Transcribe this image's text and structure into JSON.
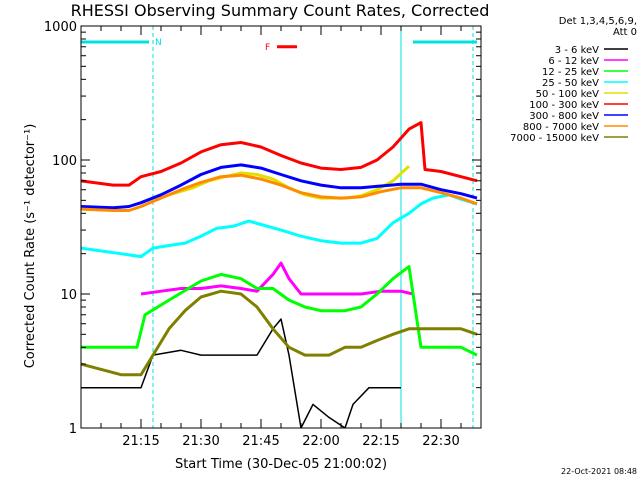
{
  "chart_data": {
    "type": "line",
    "title": "RHESSI Observing Summary Count Rates, Corrected",
    "xlabel": "Start Time (30-Dec-05 21:00:02)",
    "ylabel": "Corrected Count Rate (s⁻¹ detector⁻¹)",
    "y_log": true,
    "ylim": [
      1,
      1000
    ],
    "xlim_minutes": [
      0,
      100
    ],
    "y_ticks": [
      {
        "v": 1,
        "label": "1"
      },
      {
        "v": 10,
        "label": "10"
      },
      {
        "v": 100,
        "label": "100"
      },
      {
        "v": 1000,
        "label": "1000"
      }
    ],
    "x_ticks": [
      {
        "m": 15,
        "label": "21:15"
      },
      {
        "m": 30,
        "label": "21:30"
      },
      {
        "m": 45,
        "label": "21:45"
      },
      {
        "m": 60,
        "label": "22:00"
      },
      {
        "m": 75,
        "label": "22:15"
      },
      {
        "m": 90,
        "label": "22:30"
      }
    ],
    "legend_header": [
      "Det 1,3,4,5,6,9,",
      "Att 0"
    ],
    "legend_position": "right",
    "markers": {
      "night_label": "N",
      "flare_label": "F",
      "night_color": "#00e0e0",
      "flare_color": "#ff0000",
      "night_bars": [
        [
          0,
          18
        ],
        [
          83,
          100
        ]
      ],
      "night_vlines": [
        0,
        18,
        80,
        98
      ],
      "flare_bar_minutes": [
        49,
        54
      ],
      "flare_bar_level": 700
    },
    "annotation_date": "22-Oct-2021 08:48",
    "series": [
      {
        "name": "3 - 6 keV",
        "color": "#000000",
        "values": [
          [
            0,
            2.0
          ],
          [
            15,
            2.0
          ],
          [
            18,
            3.5
          ],
          [
            25,
            3.8
          ],
          [
            30,
            3.5
          ],
          [
            36,
            3.5
          ],
          [
            44,
            3.5
          ],
          [
            48,
            5.5
          ],
          [
            50,
            6.5
          ],
          [
            52,
            3.5
          ],
          [
            55,
            1.0
          ],
          [
            58,
            1.5
          ],
          [
            62,
            1.2
          ],
          [
            66,
            1.0
          ],
          [
            68,
            1.5
          ],
          [
            72,
            2.0
          ],
          [
            76,
            2.0
          ],
          [
            80,
            2.0
          ]
        ]
      },
      {
        "name": "6 - 12 keV",
        "color": "#ff00ff",
        "values": [
          [
            15,
            10.0
          ],
          [
            20,
            10.5
          ],
          [
            25,
            11.0
          ],
          [
            30,
            11.0
          ],
          [
            35,
            11.5
          ],
          [
            40,
            11.0
          ],
          [
            44,
            10.5
          ],
          [
            48,
            14.0
          ],
          [
            50,
            17.0
          ],
          [
            52,
            13.0
          ],
          [
            55,
            10.0
          ],
          [
            60,
            10.0
          ],
          [
            65,
            10.0
          ],
          [
            70,
            10.0
          ],
          [
            75,
            10.5
          ],
          [
            80,
            10.5
          ],
          [
            83,
            10.0
          ]
        ]
      },
      {
        "name": "12 - 25 keV",
        "color": "#00ff00",
        "values": [
          [
            0,
            4.0
          ],
          [
            14,
            4.0
          ],
          [
            16,
            7.0
          ],
          [
            22,
            9.0
          ],
          [
            30,
            12.5
          ],
          [
            35,
            14.0
          ],
          [
            40,
            13.0
          ],
          [
            44,
            11.0
          ],
          [
            48,
            11.0
          ],
          [
            52,
            9.0
          ],
          [
            56,
            8.0
          ],
          [
            60,
            7.5
          ],
          [
            66,
            7.5
          ],
          [
            70,
            8.0
          ],
          [
            74,
            10.0
          ],
          [
            78,
            13.0
          ],
          [
            82,
            16.0
          ],
          [
            85,
            4.0
          ],
          [
            90,
            4.0
          ],
          [
            95,
            4.0
          ],
          [
            99,
            3.5
          ]
        ]
      },
      {
        "name": "25 - 50 keV",
        "color": "#00ffff",
        "values": [
          [
            0,
            22.0
          ],
          [
            10,
            20.0
          ],
          [
            15,
            19.0
          ],
          [
            18,
            22.0
          ],
          [
            22,
            23.0
          ],
          [
            26,
            24.0
          ],
          [
            30,
            27.0
          ],
          [
            34,
            31.0
          ],
          [
            38,
            32.0
          ],
          [
            42,
            35.0
          ],
          [
            45,
            33.0
          ],
          [
            50,
            30.0
          ],
          [
            55,
            27.0
          ],
          [
            60,
            25.0
          ],
          [
            65,
            24.0
          ],
          [
            70,
            24.0
          ],
          [
            74,
            26.0
          ],
          [
            78,
            34.0
          ],
          [
            82,
            40.0
          ],
          [
            85,
            47.0
          ],
          [
            88,
            52.0
          ],
          [
            92,
            55.0
          ],
          [
            95,
            51.0
          ],
          [
            99,
            47.0
          ]
        ]
      },
      {
        "name": "50 - 100 keV",
        "color": "#e0e000",
        "values": [
          [
            22,
            55.0
          ],
          [
            28,
            62.0
          ],
          [
            32,
            70.0
          ],
          [
            36,
            75.0
          ],
          [
            40,
            80.0
          ],
          [
            44,
            78.0
          ],
          [
            48,
            72.0
          ],
          [
            52,
            62.0
          ],
          [
            56,
            55.0
          ],
          [
            60,
            52.0
          ],
          [
            66,
            52.0
          ],
          [
            70,
            54.0
          ],
          [
            74,
            60.0
          ],
          [
            78,
            70.0
          ],
          [
            82,
            90.0
          ]
        ]
      },
      {
        "name": "100 - 300 keV",
        "color": "#ff0000",
        "values": [
          [
            0,
            70.0
          ],
          [
            8,
            65.0
          ],
          [
            12,
            65.0
          ],
          [
            15,
            75.0
          ],
          [
            20,
            82.0
          ],
          [
            25,
            95.0
          ],
          [
            30,
            115.0
          ],
          [
            35,
            130.0
          ],
          [
            40,
            135.0
          ],
          [
            45,
            125.0
          ],
          [
            50,
            108.0
          ],
          [
            55,
            95.0
          ],
          [
            60,
            87.0
          ],
          [
            65,
            85.0
          ],
          [
            70,
            88.0
          ],
          [
            74,
            100.0
          ],
          [
            78,
            125.0
          ],
          [
            82,
            170.0
          ],
          [
            85,
            190.0
          ],
          [
            86,
            85.0
          ],
          [
            90,
            82.0
          ],
          [
            95,
            75.0
          ],
          [
            99,
            70.0
          ]
        ]
      },
      {
        "name": "300 - 800 keV",
        "color": "#0000ff",
        "values": [
          [
            0,
            45.0
          ],
          [
            8,
            44.0
          ],
          [
            12,
            45.0
          ],
          [
            15,
            48.0
          ],
          [
            20,
            55.0
          ],
          [
            25,
            65.0
          ],
          [
            30,
            78.0
          ],
          [
            35,
            88.0
          ],
          [
            40,
            92.0
          ],
          [
            45,
            87.0
          ],
          [
            50,
            78.0
          ],
          [
            55,
            70.0
          ],
          [
            60,
            65.0
          ],
          [
            65,
            62.0
          ],
          [
            70,
            62.0
          ],
          [
            75,
            64.0
          ],
          [
            80,
            66.0
          ],
          [
            85,
            66.0
          ],
          [
            90,
            60.0
          ],
          [
            95,
            56.0
          ],
          [
            99,
            52.0
          ]
        ]
      },
      {
        "name": "800 - 7000 keV",
        "color": "#ff8c00",
        "values": [
          [
            0,
            43.0
          ],
          [
            8,
            42.0
          ],
          [
            12,
            42.0
          ],
          [
            15,
            45.0
          ],
          [
            20,
            52.0
          ],
          [
            25,
            60.0
          ],
          [
            30,
            68.0
          ],
          [
            35,
            75.0
          ],
          [
            40,
            77.0
          ],
          [
            45,
            72.0
          ],
          [
            50,
            65.0
          ],
          [
            55,
            57.0
          ],
          [
            60,
            53.0
          ],
          [
            65,
            52.0
          ],
          [
            70,
            53.0
          ],
          [
            75,
            58.0
          ],
          [
            80,
            62.0
          ],
          [
            85,
            62.0
          ],
          [
            90,
            57.0
          ],
          [
            95,
            52.0
          ],
          [
            99,
            47.0
          ]
        ]
      },
      {
        "name": "7000 - 15000 keV",
        "color": "#808000",
        "values": [
          [
            0,
            3.0
          ],
          [
            10,
            2.5
          ],
          [
            15,
            2.5
          ],
          [
            18,
            3.5
          ],
          [
            22,
            5.5
          ],
          [
            26,
            7.5
          ],
          [
            30,
            9.5
          ],
          [
            35,
            10.5
          ],
          [
            40,
            10.0
          ],
          [
            44,
            8.0
          ],
          [
            48,
            5.5
          ],
          [
            52,
            4.0
          ],
          [
            56,
            3.5
          ],
          [
            62,
            3.5
          ],
          [
            66,
            4.0
          ],
          [
            70,
            4.0
          ],
          [
            74,
            4.5
          ],
          [
            78,
            5.0
          ],
          [
            82,
            5.5
          ],
          [
            86,
            5.5
          ],
          [
            90,
            5.5
          ],
          [
            95,
            5.5
          ],
          [
            99,
            5.0
          ]
        ]
      }
    ]
  }
}
